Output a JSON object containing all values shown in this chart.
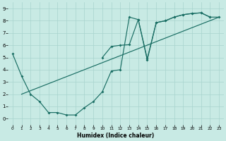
{
  "xlabel": "Humidex (Indice chaleur)",
  "xlim": [
    -0.5,
    23.5
  ],
  "ylim": [
    -0.5,
    9.5
  ],
  "xticks": [
    0,
    1,
    2,
    3,
    4,
    5,
    6,
    7,
    8,
    9,
    10,
    11,
    12,
    13,
    14,
    15,
    16,
    17,
    18,
    19,
    20,
    21,
    22,
    23
  ],
  "yticks": [
    0,
    1,
    2,
    3,
    4,
    5,
    6,
    7,
    8,
    9
  ],
  "bg_color": "#c8eae4",
  "grid_color": "#a8d4ce",
  "line_color": "#1a6e64",
  "line1_x": [
    0,
    1,
    2,
    3,
    4,
    5,
    6,
    7,
    8,
    9,
    10,
    11,
    12,
    13,
    14,
    15,
    16,
    17,
    18,
    19,
    20,
    21,
    22
  ],
  "line1_y": [
    5.3,
    3.5,
    2.0,
    1.4,
    0.5,
    0.5,
    0.3,
    0.3,
    0.9,
    1.4,
    2.2,
    3.9,
    4.0,
    8.3,
    8.1,
    4.8,
    7.85,
    8.0,
    8.3,
    8.5,
    8.6,
    8.65,
    8.3
  ],
  "line2_x": [
    1,
    23
  ],
  "line2_y": [
    2.0,
    8.3
  ],
  "line3_x": [
    10,
    11,
    12,
    13,
    14,
    15,
    16,
    17,
    18,
    19,
    20,
    21,
    22,
    23
  ],
  "line3_y": [
    5.0,
    5.9,
    6.0,
    6.05,
    8.1,
    4.9,
    7.85,
    8.0,
    8.3,
    8.5,
    8.6,
    8.65,
    8.3,
    8.3
  ]
}
